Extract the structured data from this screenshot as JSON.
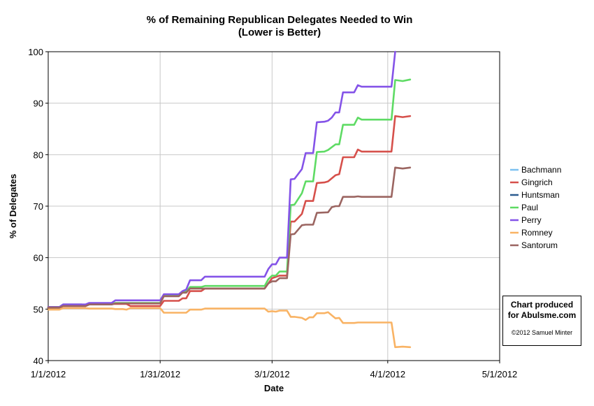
{
  "chart_data": {
    "type": "line",
    "title": "% of Remaining Republican Delegates Needed to Win",
    "subtitle": "(Lower is Better)",
    "xlabel": "Date",
    "ylabel": "% of Delegates",
    "xlim": [
      "2012-01-01",
      "2012-05-01"
    ],
    "ylim": [
      40,
      100
    ],
    "x_ticks": [
      "1/1/2012",
      "1/31/2012",
      "3/1/2012",
      "4/1/2012",
      "5/1/2012"
    ],
    "y_ticks": [
      "40",
      "50",
      "60",
      "70",
      "80",
      "90",
      "100"
    ],
    "grid": true,
    "legend_position": "right",
    "series": [
      {
        "name": "Bachmann",
        "color": "#7cc1f0",
        "points": []
      },
      {
        "name": "Gingrich",
        "color": "#d6504b",
        "points": [
          [
            "2012-01-01",
            50.2
          ],
          [
            "2012-01-04",
            50.2
          ],
          [
            "2012-01-05",
            50.6
          ],
          [
            "2012-01-11",
            50.6
          ],
          [
            "2012-01-12",
            50.9
          ],
          [
            "2012-01-17",
            50.9
          ],
          [
            "2012-01-18",
            51.0
          ],
          [
            "2012-01-22",
            51.0
          ],
          [
            "2012-01-23",
            50.6
          ],
          [
            "2012-01-31",
            50.6
          ],
          [
            "2012-02-01",
            51.6
          ],
          [
            "2012-02-05",
            51.6
          ],
          [
            "2012-02-06",
            52.1
          ],
          [
            "2012-02-07",
            52.1
          ],
          [
            "2012-02-08",
            53.5
          ],
          [
            "2012-02-11",
            53.5
          ],
          [
            "2012-02-12",
            54.0
          ],
          [
            "2012-02-28",
            54.0
          ],
          [
            "2012-02-29",
            55.0
          ],
          [
            "2012-03-01",
            56.0
          ],
          [
            "2012-03-03",
            56.5
          ],
          [
            "2012-03-05",
            56.5
          ],
          [
            "2012-03-06",
            67.0
          ],
          [
            "2012-03-07",
            67.0
          ],
          [
            "2012-03-09",
            68.5
          ],
          [
            "2012-03-10",
            71.0
          ],
          [
            "2012-03-12",
            71.0
          ],
          [
            "2012-03-13",
            74.5
          ],
          [
            "2012-03-15",
            74.6
          ],
          [
            "2012-03-16",
            74.8
          ],
          [
            "2012-03-18",
            76.0
          ],
          [
            "2012-03-19",
            76.2
          ],
          [
            "2012-03-20",
            79.5
          ],
          [
            "2012-03-23",
            79.5
          ],
          [
            "2012-03-24",
            81.0
          ],
          [
            "2012-03-25",
            80.6
          ],
          [
            "2012-04-02",
            80.6
          ],
          [
            "2012-04-03",
            87.5
          ],
          [
            "2012-04-05",
            87.3
          ],
          [
            "2012-04-07",
            87.5
          ]
        ]
      },
      {
        "name": "Huntsman",
        "color": "#2b5c8f",
        "points": [
          [
            "2012-01-01",
            50.4
          ],
          [
            "2012-01-04",
            50.4
          ],
          [
            "2012-01-05",
            50.9
          ],
          [
            "2012-01-10",
            50.9
          ]
        ]
      },
      {
        "name": "Paul",
        "color": "#5edb64",
        "points": [
          [
            "2012-01-01",
            50.3
          ],
          [
            "2012-01-04",
            50.3
          ],
          [
            "2012-01-05",
            50.7
          ],
          [
            "2012-01-11",
            50.7
          ],
          [
            "2012-01-12",
            50.9
          ],
          [
            "2012-01-18",
            50.9
          ],
          [
            "2012-01-19",
            51.2
          ],
          [
            "2012-01-21",
            51.2
          ],
          [
            "2012-01-22",
            51.2
          ],
          [
            "2012-01-31",
            51.2
          ],
          [
            "2012-02-01",
            52.7
          ],
          [
            "2012-02-05",
            52.7
          ],
          [
            "2012-02-06",
            53.3
          ],
          [
            "2012-02-07",
            53.5
          ],
          [
            "2012-02-08",
            54.3
          ],
          [
            "2012-02-11",
            54.3
          ],
          [
            "2012-02-12",
            54.5
          ],
          [
            "2012-02-28",
            54.5
          ],
          [
            "2012-02-29",
            55.8
          ],
          [
            "2012-03-01",
            56.5
          ],
          [
            "2012-03-02",
            56.5
          ],
          [
            "2012-03-03",
            57.3
          ],
          [
            "2012-03-05",
            57.3
          ],
          [
            "2012-03-06",
            70.2
          ],
          [
            "2012-03-07",
            70.3
          ],
          [
            "2012-03-09",
            72.5
          ],
          [
            "2012-03-10",
            74.8
          ],
          [
            "2012-03-12",
            74.8
          ],
          [
            "2012-03-13",
            80.5
          ],
          [
            "2012-03-15",
            80.6
          ],
          [
            "2012-03-16",
            80.9
          ],
          [
            "2012-03-18",
            82.0
          ],
          [
            "2012-03-19",
            82.0
          ],
          [
            "2012-03-20",
            85.8
          ],
          [
            "2012-03-23",
            85.8
          ],
          [
            "2012-03-24",
            87.2
          ],
          [
            "2012-03-25",
            86.8
          ],
          [
            "2012-04-02",
            86.8
          ],
          [
            "2012-04-03",
            94.5
          ],
          [
            "2012-04-05",
            94.3
          ],
          [
            "2012-04-07",
            94.6
          ]
        ]
      },
      {
        "name": "Perry",
        "color": "#8453e8",
        "points": [
          [
            "2012-01-01",
            50.4
          ],
          [
            "2012-01-04",
            50.4
          ],
          [
            "2012-01-05",
            50.9
          ],
          [
            "2012-01-11",
            50.9
          ],
          [
            "2012-01-12",
            51.2
          ],
          [
            "2012-01-18",
            51.2
          ],
          [
            "2012-01-19",
            51.7
          ],
          [
            "2012-01-31",
            51.7
          ],
          [
            "2012-02-01",
            52.9
          ],
          [
            "2012-02-05",
            52.9
          ],
          [
            "2012-02-06",
            53.5
          ],
          [
            "2012-02-07",
            53.8
          ],
          [
            "2012-02-08",
            55.6
          ],
          [
            "2012-02-11",
            55.6
          ],
          [
            "2012-02-12",
            56.3
          ],
          [
            "2012-02-28",
            56.3
          ],
          [
            "2012-02-29",
            57.8
          ],
          [
            "2012-03-01",
            58.7
          ],
          [
            "2012-03-02",
            58.7
          ],
          [
            "2012-03-03",
            60.0
          ],
          [
            "2012-03-05",
            60.0
          ],
          [
            "2012-03-06",
            75.2
          ],
          [
            "2012-03-07",
            75.3
          ],
          [
            "2012-03-09",
            77.2
          ],
          [
            "2012-03-10",
            80.3
          ],
          [
            "2012-03-12",
            80.3
          ],
          [
            "2012-03-13",
            86.3
          ],
          [
            "2012-03-15",
            86.4
          ],
          [
            "2012-03-16",
            86.6
          ],
          [
            "2012-03-17",
            87.2
          ],
          [
            "2012-03-18",
            88.2
          ],
          [
            "2012-03-19",
            88.2
          ],
          [
            "2012-03-20",
            92.1
          ],
          [
            "2012-03-23",
            92.1
          ],
          [
            "2012-03-24",
            93.5
          ],
          [
            "2012-03-25",
            93.2
          ],
          [
            "2012-04-02",
            93.2
          ],
          [
            "2012-04-03",
            100
          ]
        ]
      },
      {
        "name": "Romney",
        "color": "#f9b364",
        "points": [
          [
            "2012-01-01",
            49.9
          ],
          [
            "2012-01-04",
            49.9
          ],
          [
            "2012-01-05",
            50.2
          ],
          [
            "2012-01-11",
            50.2
          ],
          [
            "2012-01-12",
            50.1
          ],
          [
            "2012-01-18",
            50.1
          ],
          [
            "2012-01-19",
            50.0
          ],
          [
            "2012-01-21",
            50.0
          ],
          [
            "2012-01-22",
            49.9
          ],
          [
            "2012-01-23",
            50.2
          ],
          [
            "2012-01-31",
            50.2
          ],
          [
            "2012-02-01",
            49.3
          ],
          [
            "2012-02-06",
            49.3
          ],
          [
            "2012-02-07",
            49.3
          ],
          [
            "2012-02-08",
            49.9
          ],
          [
            "2012-02-11",
            49.9
          ],
          [
            "2012-02-12",
            50.1
          ],
          [
            "2012-02-28",
            50.1
          ],
          [
            "2012-02-29",
            49.5
          ],
          [
            "2012-03-01",
            49.6
          ],
          [
            "2012-03-02",
            49.5
          ],
          [
            "2012-03-03",
            49.7
          ],
          [
            "2012-03-05",
            49.7
          ],
          [
            "2012-03-06",
            48.5
          ],
          [
            "2012-03-07",
            48.5
          ],
          [
            "2012-03-09",
            48.3
          ],
          [
            "2012-03-10",
            47.9
          ],
          [
            "2012-03-11",
            48.4
          ],
          [
            "2012-03-12",
            48.4
          ],
          [
            "2012-03-13",
            49.2
          ],
          [
            "2012-03-15",
            49.2
          ],
          [
            "2012-03-16",
            49.4
          ],
          [
            "2012-03-17",
            48.8
          ],
          [
            "2012-03-18",
            48.2
          ],
          [
            "2012-03-19",
            48.3
          ],
          [
            "2012-03-20",
            47.3
          ],
          [
            "2012-03-23",
            47.3
          ],
          [
            "2012-03-24",
            47.4
          ],
          [
            "2012-03-25",
            47.4
          ],
          [
            "2012-04-02",
            47.4
          ],
          [
            "2012-04-03",
            42.6
          ],
          [
            "2012-04-05",
            42.7
          ],
          [
            "2012-04-07",
            42.6
          ]
        ]
      },
      {
        "name": "Santorum",
        "color": "#9b6561",
        "points": [
          [
            "2012-01-01",
            50.3
          ],
          [
            "2012-01-04",
            50.3
          ],
          [
            "2012-01-05",
            50.6
          ],
          [
            "2012-01-11",
            50.6
          ],
          [
            "2012-01-12",
            50.9
          ],
          [
            "2012-01-18",
            50.9
          ],
          [
            "2012-01-19",
            51.1
          ],
          [
            "2012-01-31",
            51.1
          ],
          [
            "2012-02-01",
            52.5
          ],
          [
            "2012-02-05",
            52.5
          ],
          [
            "2012-02-06",
            53.2
          ],
          [
            "2012-02-07",
            53.2
          ],
          [
            "2012-02-08",
            54.0
          ],
          [
            "2012-02-28",
            54.0
          ],
          [
            "2012-02-29",
            55.0
          ],
          [
            "2012-03-01",
            55.4
          ],
          [
            "2012-03-02",
            55.4
          ],
          [
            "2012-03-03",
            56.0
          ],
          [
            "2012-03-05",
            56.0
          ],
          [
            "2012-03-06",
            64.5
          ],
          [
            "2012-03-07",
            64.6
          ],
          [
            "2012-03-09",
            66.3
          ],
          [
            "2012-03-10",
            66.4
          ],
          [
            "2012-03-12",
            66.4
          ],
          [
            "2012-03-13",
            68.7
          ],
          [
            "2012-03-16",
            68.8
          ],
          [
            "2012-03-17",
            69.8
          ],
          [
            "2012-03-18",
            70.0
          ],
          [
            "2012-03-19",
            70.0
          ],
          [
            "2012-03-20",
            71.8
          ],
          [
            "2012-03-23",
            71.8
          ],
          [
            "2012-03-24",
            71.9
          ],
          [
            "2012-03-25",
            71.8
          ],
          [
            "2012-04-02",
            71.8
          ],
          [
            "2012-04-03",
            77.5
          ],
          [
            "2012-04-05",
            77.3
          ],
          [
            "2012-04-07",
            77.5
          ]
        ]
      }
    ]
  },
  "credit": {
    "line1": "Chart produced",
    "line2": "for Abulsme.com",
    "line3": "©2012 Samuel Minter"
  }
}
